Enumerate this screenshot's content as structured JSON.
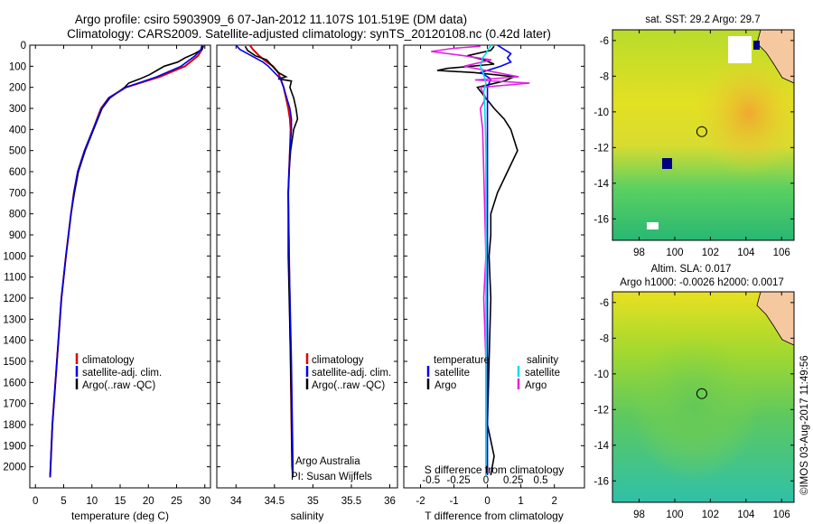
{
  "header": {
    "line1": "Argo profile: csiro 5903909_6 07-Jan-2012 11.107S 101.519E (DM data)",
    "line2": "Climatology: CARS2009. Satellite-adjusted climatology: synTS_20120108.nc (0.42d later)"
  },
  "colors": {
    "climatology": "#e00000",
    "satellite": "#0000ee",
    "argo": "#000000",
    "satellite_s": "#00e0e0",
    "argo_s": "#e020e0"
  },
  "chart_data": [
    {
      "type": "line",
      "id": "temperature",
      "xlabel": "temperature (deg C)",
      "ylabel": "",
      "xlim": [
        -1,
        31
      ],
      "ylim": [
        2100,
        0
      ],
      "xticks": [
        "0",
        "5",
        "10",
        "15",
        "20",
        "25",
        "30"
      ],
      "xtick_values": [
        0,
        5,
        10,
        15,
        20,
        25,
        30
      ],
      "yticks": [
        "0",
        "100",
        "200",
        "300",
        "400",
        "500",
        "600",
        "700",
        "800",
        "900",
        "1000",
        "1100",
        "1200",
        "1300",
        "1400",
        "1500",
        "1600",
        "1700",
        "1800",
        "1900",
        "2000"
      ],
      "ytick_values": [
        0,
        100,
        200,
        300,
        400,
        500,
        600,
        700,
        800,
        900,
        1000,
        1100,
        1200,
        1300,
        1400,
        1500,
        1600,
        1700,
        1800,
        1900,
        2000
      ],
      "legend": [
        "climatology",
        "satellite-adj. clim.",
        "Argo(..raw -QC)"
      ],
      "series": [
        {
          "name": "climatology",
          "depth": [
            0,
            20,
            50,
            100,
            150,
            200,
            250,
            300,
            400,
            500,
            600,
            700,
            800,
            1000,
            1200,
            1500,
            1800,
            2050
          ],
          "values": [
            29.8,
            29.5,
            28.8,
            26.5,
            22,
            16,
            13,
            11.6,
            10.2,
            8.7,
            7.5,
            6.8,
            6.3,
            5.4,
            4.6,
            3.8,
            3.0,
            2.6
          ]
        },
        {
          "name": "satellite-adj. clim.",
          "depth": [
            0,
            20,
            50,
            100,
            150,
            200,
            250,
            300,
            400,
            500,
            600,
            700,
            800,
            1000,
            1200,
            1500,
            1800,
            2050
          ],
          "values": [
            29.5,
            29.3,
            28.3,
            25.8,
            21.5,
            16,
            13,
            11.7,
            10.2,
            8.7,
            7.5,
            6.8,
            6.3,
            5.4,
            4.6,
            3.8,
            3.0,
            2.6
          ]
        },
        {
          "name": "Argo(..raw -QC)",
          "depth": [
            5,
            20,
            40,
            60,
            80,
            100,
            120,
            140,
            160,
            180,
            200,
            250,
            300,
            400,
            500,
            600,
            700,
            800,
            1000,
            1200,
            1500,
            1800,
            2040
          ],
          "values": [
            29.7,
            29.5,
            28.2,
            26.5,
            25.2,
            22.8,
            21.5,
            20.2,
            18.5,
            16.5,
            15.8,
            13.2,
            11.8,
            10.3,
            8.8,
            7.6,
            6.9,
            6.3,
            5.4,
            4.6,
            3.8,
            3.0,
            2.6
          ]
        }
      ]
    },
    {
      "type": "line",
      "id": "salinity",
      "xlabel": "salinity",
      "xlim": [
        33.75,
        36.1
      ],
      "ylim": [
        2100,
        0
      ],
      "xticks": [
        "34",
        "34.5",
        "35",
        "35.5",
        "36"
      ],
      "xtick_values": [
        34,
        34.5,
        35,
        35.5,
        36
      ],
      "legend": [
        "climatology",
        "satellite-adj. clim.",
        "Argo(..raw -QC)"
      ],
      "annotation": [
        "Argo Australia",
        "PI: Susan Wijffels"
      ],
      "series": [
        {
          "name": "climatology",
          "depth": [
            0,
            20,
            50,
            80,
            100,
            130,
            160,
            200,
            250,
            300,
            350,
            400,
            500,
            700,
            1000,
            1500,
            2000,
            2050
          ],
          "values": [
            34.18,
            34.22,
            34.3,
            34.4,
            34.48,
            34.55,
            34.58,
            34.62,
            34.65,
            34.68,
            34.7,
            34.71,
            34.7,
            34.68,
            34.69,
            34.71,
            34.73,
            34.74
          ]
        },
        {
          "name": "satellite-adj. clim.",
          "depth": [
            0,
            20,
            50,
            80,
            100,
            130,
            160,
            200,
            250,
            300,
            350,
            400,
            500,
            700,
            1000,
            1500,
            2000,
            2050
          ],
          "values": [
            34.0,
            34.05,
            34.2,
            34.35,
            34.42,
            34.5,
            34.58,
            34.62,
            34.66,
            34.7,
            34.72,
            34.72,
            34.7,
            34.68,
            34.69,
            34.72,
            34.74,
            34.74
          ]
        },
        {
          "name": "Argo(..raw -QC)",
          "depth": [
            5,
            25,
            50,
            70,
            90,
            110,
            130,
            150,
            160,
            170,
            200,
            250,
            300,
            350,
            400,
            450,
            500,
            600,
            700,
            1000,
            1500,
            2000,
            2040
          ],
          "values": [
            34.12,
            34.15,
            34.25,
            34.4,
            34.45,
            34.5,
            34.55,
            34.65,
            34.55,
            34.72,
            34.7,
            34.75,
            34.78,
            34.8,
            34.75,
            34.73,
            34.71,
            34.69,
            34.68,
            34.68,
            34.71,
            34.73,
            34.74
          ]
        }
      ]
    },
    {
      "type": "line",
      "id": "difference",
      "xlabel": "T difference from climatology",
      "xlabel_top": "S difference from climatology",
      "xlim": [
        -2.5,
        2.9
      ],
      "ylim": [
        2100,
        0
      ],
      "xticks": [
        "-2",
        "-1",
        "0",
        "1",
        "2"
      ],
      "xtick_values": [
        -2,
        -1,
        0,
        1,
        2
      ],
      "sticks": [
        "-0.5",
        "-0.25",
        "0",
        "0.25",
        "0.5"
      ],
      "stick_values": [
        -0.5,
        -0.25,
        0,
        0.25,
        0.5
      ],
      "legend_headers": [
        "temperature",
        "salinity"
      ],
      "legend": [
        "satellite",
        "Argo",
        "satellite",
        "Argo"
      ],
      "series": [
        {
          "name": "T satellite",
          "depth": [
            0,
            20,
            40,
            60,
            80,
            100,
            130,
            160,
            200,
            300,
            500,
            800,
            1200,
            1600,
            2040
          ],
          "values": [
            0.3,
            0.5,
            0.7,
            0.6,
            0.7,
            0.4,
            -0.2,
            0.1,
            0.0,
            0.0,
            0.0,
            0.0,
            0.0,
            0.0,
            0.0
          ]
        },
        {
          "name": "T Argo",
          "depth": [
            5,
            25,
            50,
            70,
            90,
            110,
            120,
            130,
            150,
            170,
            200,
            300,
            350,
            400,
            500,
            600,
            700,
            800,
            900,
            1000,
            1200,
            1500,
            1800,
            1950,
            2040
          ],
          "values": [
            0.2,
            0.1,
            -0.6,
            -0.1,
            0.2,
            -1.2,
            -1.5,
            -0.4,
            0.8,
            0.5,
            -0.3,
            0.2,
            0.5,
            0.7,
            0.9,
            0.6,
            0.3,
            0.1,
            0.1,
            0.05,
            0.1,
            0.05,
            0.0,
            0.2,
            0.1
          ]
        },
        {
          "name": "S satellite",
          "depth": [
            0,
            20,
            40,
            60,
            100,
            140,
            180,
            220,
            300,
            500,
            1000,
            1500,
            2040
          ],
          "values": [
            0.05,
            0.02,
            0.0,
            -0.03,
            -0.05,
            -0.02,
            0.0,
            -0.02,
            -0.01,
            0.0,
            0.0,
            0.0,
            0.0
          ]
        },
        {
          "name": "S Argo",
          "depth": [
            5,
            15,
            30,
            50,
            70,
            100,
            130,
            150,
            165,
            180,
            200,
            250,
            300,
            400,
            600,
            800,
            1000,
            1200,
            1500,
            1800,
            2040
          ],
          "values": [
            -0.05,
            -0.3,
            -0.5,
            -0.2,
            0.05,
            -0.2,
            0.1,
            0.3,
            -0.1,
            0.4,
            -0.05,
            0.0,
            -0.05,
            -0.03,
            -0.02,
            -0.01,
            0.0,
            -0.02,
            0.0,
            0.0,
            0.0
          ]
        }
      ]
    }
  ],
  "maps": [
    {
      "title": "sat. SST: 29.2  Argo: 29.7",
      "xticks": [
        "98",
        "100",
        "102",
        "104",
        "106"
      ],
      "xtick_values": [
        98,
        100,
        102,
        104,
        106
      ],
      "yticks": [
        "-6",
        "-8",
        "-10",
        "-12",
        "-14",
        "-16"
      ],
      "ytick_values": [
        -6,
        -8,
        -10,
        -12,
        -14,
        -16
      ],
      "xlim": [
        96.5,
        106.7
      ],
      "ylim": [
        -17.2,
        -5.4
      ],
      "argo_lon": 101.519,
      "argo_lat": -11.107
    },
    {
      "title_line1": "Altim. SLA: 0.017",
      "title_line2": "Argo h1000: -0.0026  h2000: 0.0017",
      "xticks": [
        "98",
        "100",
        "102",
        "104",
        "106"
      ],
      "xtick_values": [
        98,
        100,
        102,
        104,
        106
      ],
      "yticks": [
        "-6",
        "-8",
        "-10",
        "-12",
        "-14",
        "-16"
      ],
      "ytick_values": [
        -6,
        -8,
        -10,
        -12,
        -14,
        -16
      ],
      "xlim": [
        96.5,
        106.7
      ],
      "ylim": [
        -17.2,
        -5.4
      ],
      "argo_lon": 101.519,
      "argo_lat": -11.107
    }
  ],
  "footer": {
    "stamp": "©IMOS 03-Aug-2017 11:49:56"
  }
}
